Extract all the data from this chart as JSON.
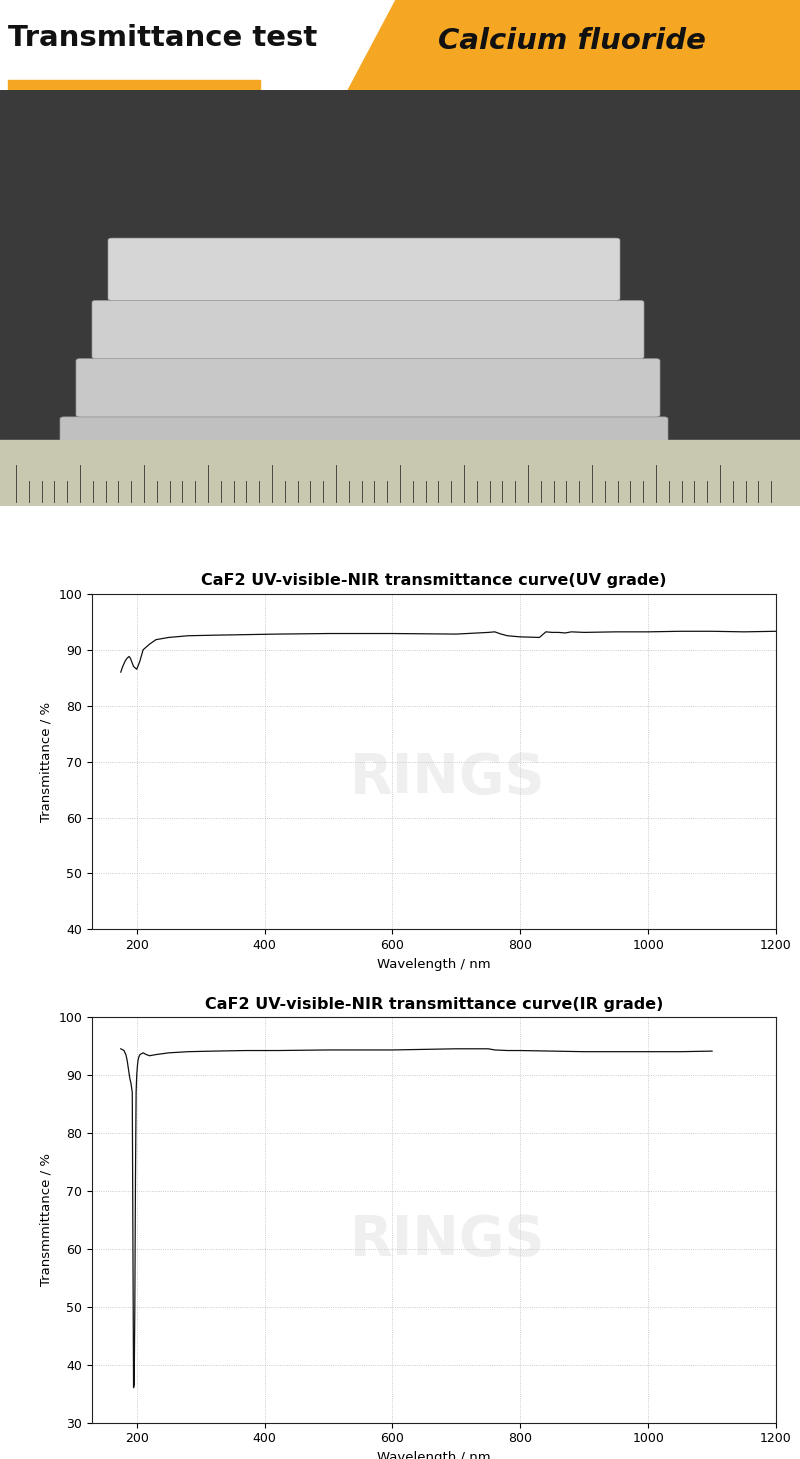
{
  "title_left": "Transmittance test",
  "title_right": "Calcium fluoride",
  "header_bg_color": "#F5A623",
  "header_text_color_left": "#111111",
  "header_text_color_right": "#111111",
  "underline_color": "#F5A623",
  "chart1_title": "CaF2 UV-visible-NIR transmittance curve(UV grade)",
  "chart2_title": "CaF2 UV-visible-NIR transmittance curve(IR grade)",
  "xlabel": "Wavelength / nm",
  "ylabel1": "Transmittance / %",
  "ylabel2": "Transmmittance / %",
  "xlim": [
    130,
    1200
  ],
  "ylim1": [
    40,
    100
  ],
  "ylim2": [
    30,
    100
  ],
  "yticks1": [
    40,
    50,
    60,
    70,
    80,
    90,
    100
  ],
  "yticks2": [
    30,
    40,
    50,
    60,
    70,
    80,
    90,
    100
  ],
  "xticks": [
    200,
    400,
    600,
    800,
    1000,
    1200
  ],
  "grid_color": "#bbbbbb",
  "grid_style": ":",
  "curve_color": "#111111",
  "uv_curve_x": [
    175,
    178,
    180,
    182,
    185,
    188,
    190,
    195,
    200,
    205,
    210,
    220,
    230,
    250,
    280,
    320,
    370,
    420,
    500,
    600,
    700,
    750,
    760,
    770,
    780,
    800,
    830,
    840,
    850,
    860,
    870,
    880,
    900,
    950,
    1000,
    1050,
    1100,
    1150,
    1200
  ],
  "uv_curve_y": [
    86,
    87,
    87.5,
    88,
    88.5,
    88.8,
    88.5,
    87,
    86.5,
    88,
    90,
    91.0,
    91.8,
    92.2,
    92.5,
    92.6,
    92.7,
    92.8,
    92.9,
    92.9,
    92.8,
    93.1,
    93.2,
    92.8,
    92.5,
    92.3,
    92.2,
    93.2,
    93.1,
    93.1,
    93.0,
    93.2,
    93.1,
    93.2,
    93.2,
    93.3,
    93.3,
    93.2,
    93.3
  ],
  "ir_curve_x": [
    175,
    180,
    183,
    185,
    187,
    189,
    191,
    193,
    195,
    196,
    197,
    198,
    199,
    200,
    201,
    202,
    203,
    205,
    210,
    215,
    220,
    230,
    250,
    280,
    320,
    370,
    420,
    500,
    600,
    700,
    750,
    760,
    780,
    800,
    900,
    1000,
    1050,
    1100
  ],
  "ir_curve_y": [
    94.5,
    94.2,
    93.5,
    92.5,
    91.0,
    89.5,
    88.5,
    87.0,
    36.0,
    36.5,
    50.0,
    72.0,
    87.0,
    90.0,
    91.5,
    92.5,
    93.0,
    93.5,
    93.8,
    93.5,
    93.3,
    93.5,
    93.8,
    94.0,
    94.1,
    94.2,
    94.2,
    94.3,
    94.3,
    94.5,
    94.5,
    94.3,
    94.2,
    94.2,
    94.0,
    94.0,
    94.0,
    94.1
  ],
  "watermark_text": "RINGS",
  "bg_color": "#ffffff",
  "photo_bg": "#3a3a3a",
  "photo_mid": "#606060",
  "ruler_bg": "#c8c8b0"
}
